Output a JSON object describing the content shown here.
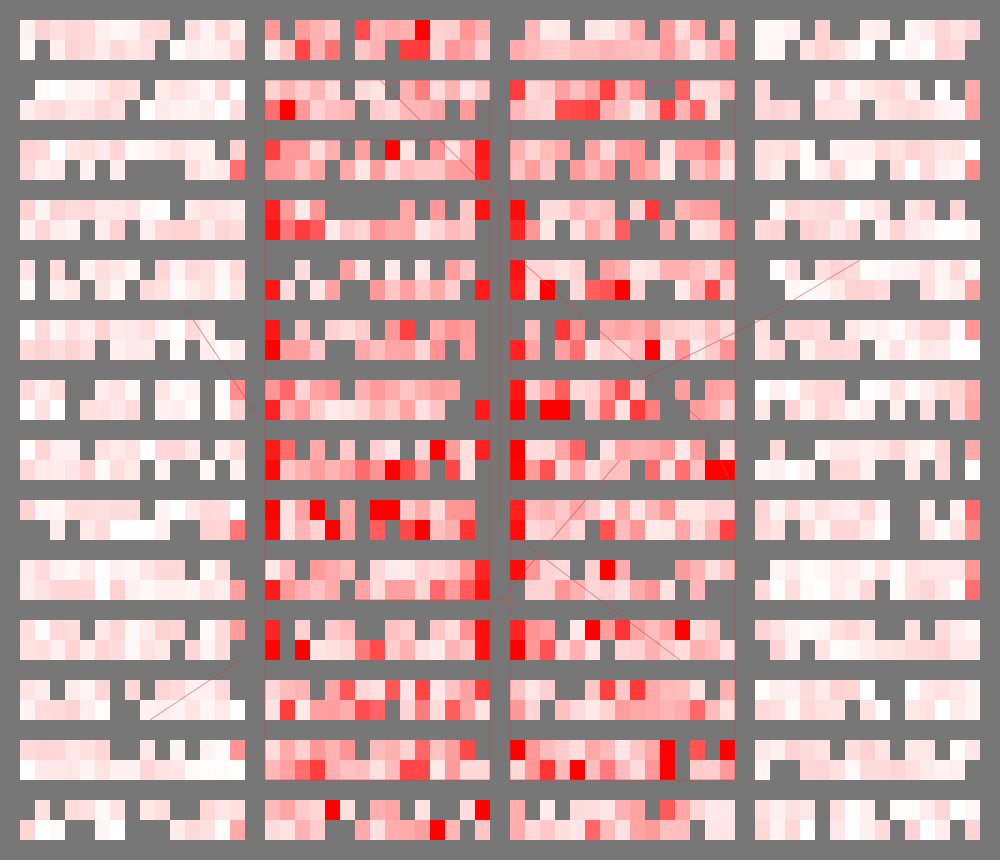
{
  "image": {
    "background_color": "#777777",
    "cell_base_color": "#ffffff",
    "highlight_color": "#ff0000",
    "line_color": "#c04848",
    "columns": 4,
    "rows": 14,
    "cells_per_band": 15,
    "highlighted_columns": [
      1,
      2
    ]
  }
}
